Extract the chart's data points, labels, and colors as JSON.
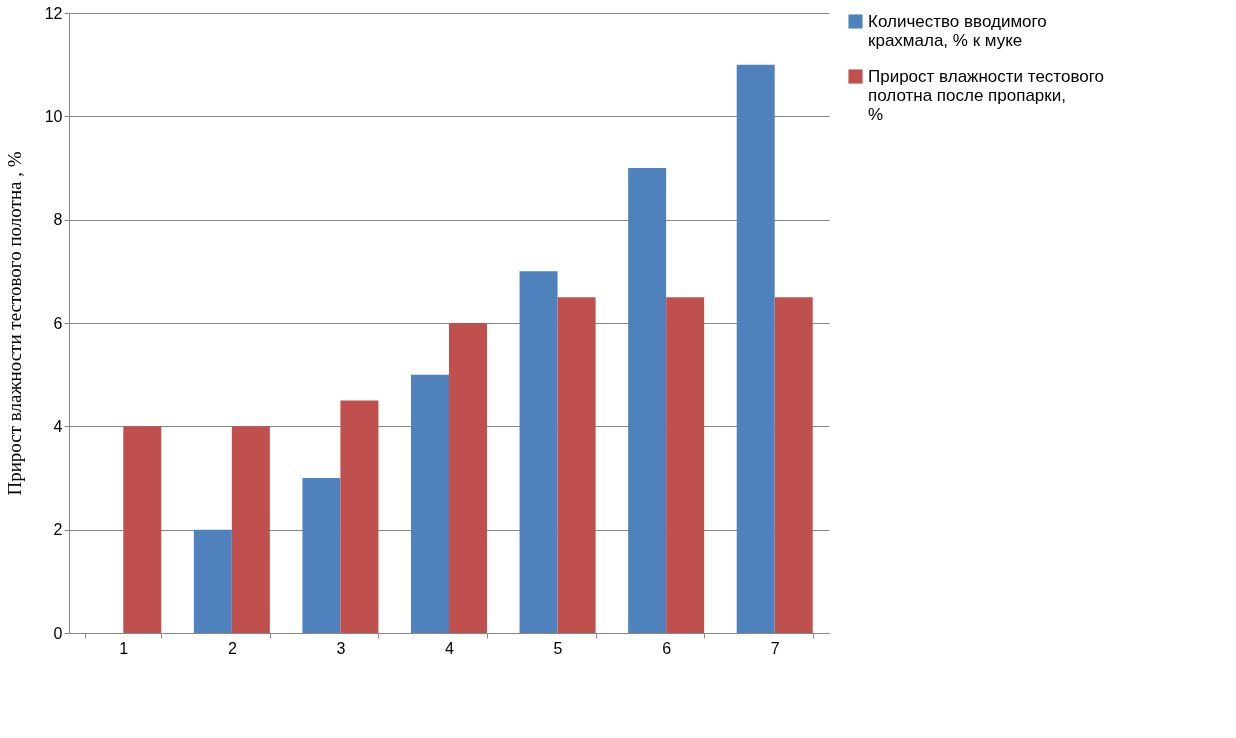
{
  "chart_data": {
    "type": "bar",
    "ylabel": "Прирост влажности тестового полотна  , %",
    "categories": [
      "1",
      "2",
      "3",
      "4",
      "5",
      "6",
      "7"
    ],
    "series": [
      {
        "name": "Количество  вводимого крахмала,   % к муке",
        "color": "#4f81bd",
        "values": [
          0,
          2,
          3,
          5,
          7,
          9,
          11
        ]
      },
      {
        "name": "Прирост влажности тестового полотна        после пропарки, %",
        "color": "#c0504d",
        "values": [
          4,
          4,
          4.5,
          6,
          6.5,
          6.5,
          6.5
        ]
      }
    ],
    "ylim": [
      0,
      12
    ],
    "yticks": [
      0,
      2,
      4,
      6,
      8,
      10,
      12
    ],
    "grid": "y",
    "legend": "right"
  }
}
